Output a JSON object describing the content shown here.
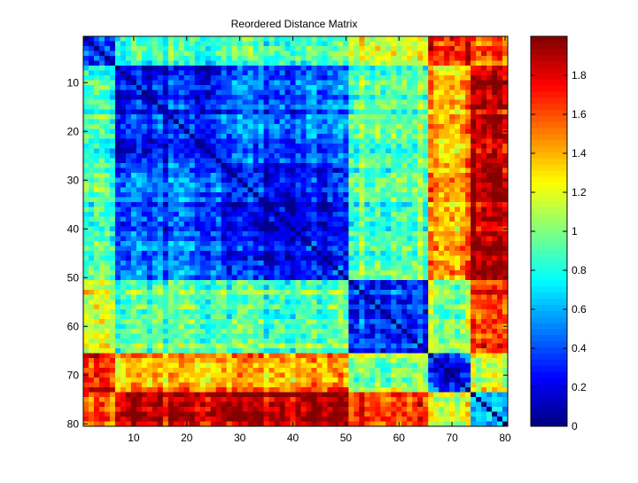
{
  "chart_data": {
    "type": "heatmap",
    "title": "Reordered Distance Matrix",
    "xlabel": "",
    "ylabel": "",
    "size": 80,
    "x_ticks": [
      10,
      20,
      30,
      40,
      50,
      60,
      70,
      80
    ],
    "y_ticks": [
      10,
      20,
      30,
      40,
      50,
      60,
      70,
      80
    ],
    "value_range": [
      0,
      2
    ],
    "colormap": "jet",
    "colorbar_ticks": [
      0,
      0.2,
      0.4,
      0.6,
      0.8,
      1,
      1.2,
      1.4,
      1.6,
      1.8
    ],
    "colorbar_tick_labels": [
      "0",
      "0.2",
      "0.4",
      "0.6",
      "0.8",
      "1",
      "1.2",
      "1.4",
      "1.6",
      "1.8"
    ],
    "clusters": [
      {
        "start": 1,
        "end": 6,
        "within": 0.45
      },
      {
        "start": 7,
        "end": 26,
        "within": 0.25
      },
      {
        "start": 27,
        "end": 50,
        "within": 0.22
      },
      {
        "start": 51,
        "end": 65,
        "within": 0.45
      },
      {
        "start": 66,
        "end": 73,
        "within": 0.35
      },
      {
        "start": 74,
        "end": 80,
        "within": 0.6
      }
    ],
    "between_clusters": [
      [
        0.45,
        0.85,
        0.9,
        1.25,
        1.75,
        1.6
      ],
      [
        0.85,
        0.25,
        0.4,
        0.95,
        1.4,
        1.85
      ],
      [
        0.9,
        0.4,
        0.22,
        0.95,
        1.45,
        1.9
      ],
      [
        1.25,
        0.95,
        0.95,
        0.45,
        1.1,
        1.7
      ],
      [
        1.75,
        1.4,
        1.45,
        1.1,
        0.35,
        1.2
      ],
      [
        1.6,
        1.85,
        1.9,
        1.7,
        1.2,
        0.6
      ]
    ]
  }
}
